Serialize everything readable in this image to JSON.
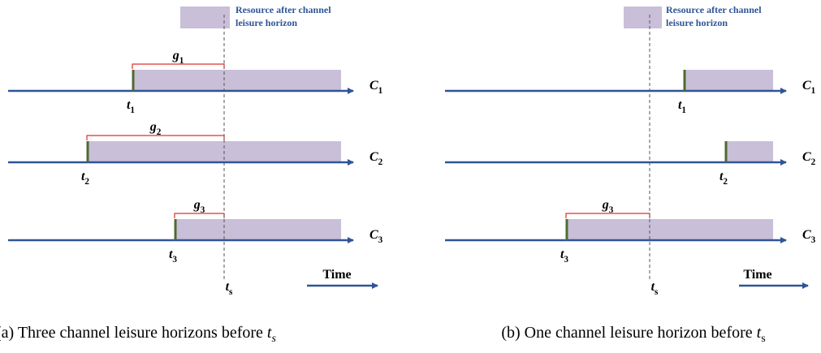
{
  "panels": [
    {
      "legend": [
        "Resource after channel",
        "leisure horizon"
      ],
      "channels": [
        {
          "name": {
            "main": "C",
            "sub": "1"
          },
          "start": {
            "main": "t",
            "sub": "1"
          },
          "gap": {
            "main": "g",
            "sub": "1"
          }
        },
        {
          "name": {
            "main": "C",
            "sub": "2"
          },
          "start": {
            "main": "t",
            "sub": "2"
          },
          "gap": {
            "main": "g",
            "sub": "2"
          }
        },
        {
          "name": {
            "main": "C",
            "sub": "3"
          },
          "start": {
            "main": "t",
            "sub": "3"
          },
          "gap": {
            "main": "g",
            "sub": "3"
          }
        }
      ],
      "ts": {
        "main": "t",
        "sub": "s"
      },
      "time": "Time",
      "caption": {
        "text": "(a) Three channel leisure horizons before ",
        "main": "t",
        "sub": "s"
      }
    },
    {
      "legend": [
        "Resource after channel",
        "leisure horizon"
      ],
      "channels": [
        {
          "name": {
            "main": "C",
            "sub": "1"
          },
          "start": {
            "main": "t",
            "sub": "1"
          }
        },
        {
          "name": {
            "main": "C",
            "sub": "2"
          },
          "start": {
            "main": "t",
            "sub": "2"
          }
        },
        {
          "name": {
            "main": "C",
            "sub": "3"
          },
          "start": {
            "main": "t",
            "sub": "3"
          },
          "gap": {
            "main": "g",
            "sub": "3"
          }
        }
      ],
      "ts": {
        "main": "t",
        "sub": "s"
      },
      "time": "Time",
      "caption": {
        "text": "(b) One channel leisure horizon before ",
        "main": "t",
        "sub": "s"
      }
    }
  ]
}
